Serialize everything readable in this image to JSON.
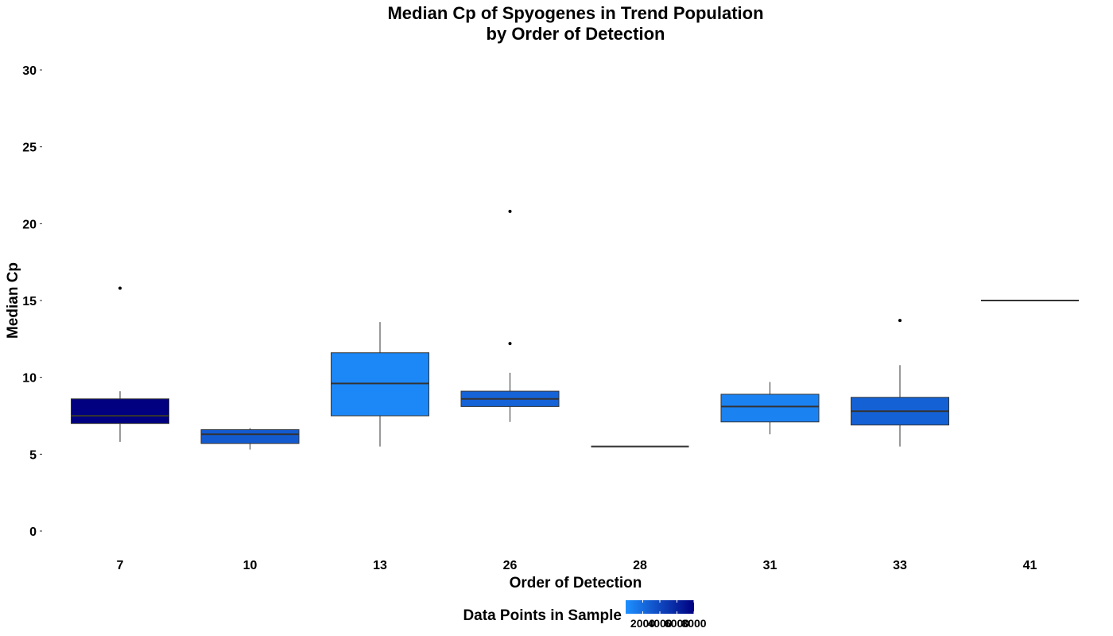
{
  "chart_data": {
    "type": "box",
    "title": [
      "Median Cp of Spyogenes in Trend Population",
      "by Order of Detection"
    ],
    "xlabel": "Order of Detection",
    "ylabel": "Median Cp",
    "ylim": [
      0,
      30
    ],
    "yticks": [
      0,
      5,
      10,
      15,
      20,
      25,
      30
    ],
    "grid": false,
    "categories": [
      "7",
      "10",
      "13",
      "26",
      "28",
      "31",
      "33",
      "41"
    ],
    "boxes": [
      {
        "category": "7",
        "whisker_low": 5.8,
        "q1": 7.0,
        "median": 7.5,
        "q3": 8.6,
        "whisker_high": 9.1,
        "outliers": [
          15.8
        ],
        "data_points": 8000
      },
      {
        "category": "10",
        "whisker_low": 5.3,
        "q1": 5.7,
        "median": 6.3,
        "q3": 6.6,
        "whisker_high": 6.7,
        "outliers": [],
        "data_points": 3000
      },
      {
        "category": "13",
        "whisker_low": 5.5,
        "q1": 7.5,
        "median": 9.6,
        "q3": 11.6,
        "whisker_high": 13.6,
        "outliers": [],
        "data_points": 500
      },
      {
        "category": "26",
        "whisker_low": 7.1,
        "q1": 8.1,
        "median": 8.6,
        "q3": 9.1,
        "whisker_high": 10.3,
        "outliers": [
          12.2,
          20.8
        ],
        "data_points": 2500
      },
      {
        "category": "28",
        "whisker_low": 5.5,
        "q1": 5.5,
        "median": 5.5,
        "q3": 5.5,
        "whisker_high": 5.5,
        "outliers": [],
        "data_points": 2000
      },
      {
        "category": "31",
        "whisker_low": 6.3,
        "q1": 7.1,
        "median": 8.1,
        "q3": 8.9,
        "whisker_high": 9.7,
        "outliers": [],
        "data_points": 800
      },
      {
        "category": "33",
        "whisker_low": 5.5,
        "q1": 6.9,
        "median": 7.8,
        "q3": 8.7,
        "whisker_high": 10.8,
        "outliers": [
          13.7
        ],
        "data_points": 2600
      },
      {
        "category": "41",
        "whisker_low": 15.0,
        "q1": 15.0,
        "median": 15.0,
        "q3": 15.0,
        "whisker_high": 15.0,
        "outliers": [],
        "data_points": 2000
      }
    ],
    "legend": {
      "title": "Data Points in Sample",
      "position": "bottom",
      "min": 0,
      "max": 8000,
      "low_color": "#1E90FF",
      "high_color": "#000080",
      "tick_values": [
        2000,
        4000,
        6000,
        8000
      ],
      "tick_labels": [
        "2000",
        "4000",
        "6000",
        "8000"
      ]
    }
  }
}
